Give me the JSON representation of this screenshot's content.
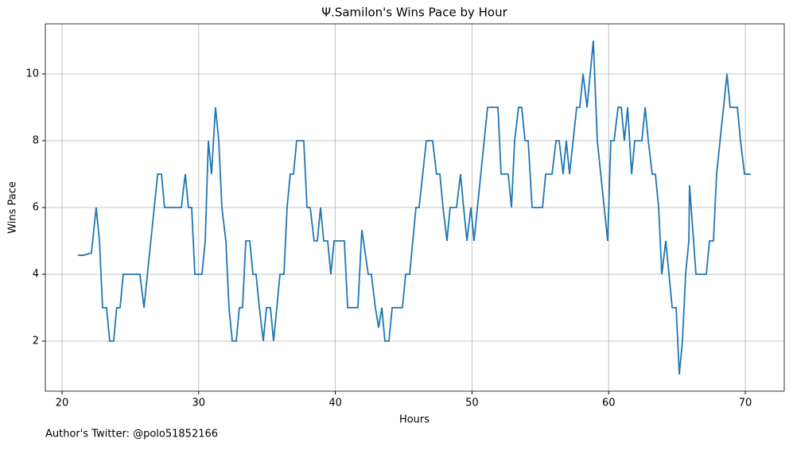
{
  "chart_data": {
    "type": "line",
    "title": "Ψ.Samilon's Wins Pace by Hour",
    "x_label": "Hours",
    "y_label": "Wins Pace",
    "annotation": "Author's Twitter: @polo51852166",
    "grid": true,
    "xlim": [
      18.78,
      72.85
    ],
    "ylim": [
      0.5,
      11.5
    ],
    "xticks": [
      20,
      30,
      40,
      50,
      60,
      70
    ],
    "yticks": [
      2,
      4,
      6,
      8,
      10
    ],
    "x": [
      21.16,
      21.57,
      22.15,
      22.5,
      22.74,
      22.97,
      23.26,
      23.49,
      23.78,
      24.0,
      24.25,
      24.48,
      25.7,
      26.0,
      27.0,
      27.28,
      27.5,
      28.73,
      29.02,
      29.25,
      29.49,
      29.72,
      30.24,
      30.48,
      30.71,
      30.94,
      31.23,
      31.47,
      31.7,
      31.99,
      32.22,
      32.46,
      32.75,
      32.98,
      33.21,
      33.45,
      33.74,
      33.97,
      34.2,
      34.44,
      34.73,
      34.96,
      35.25,
      35.48,
      35.72,
      35.95,
      36.24,
      36.47,
      36.7,
      36.94,
      37.17,
      37.69,
      37.93,
      38.16,
      38.45,
      38.68,
      38.92,
      39.15,
      39.44,
      39.67,
      39.91,
      40.66,
      40.9,
      41.65,
      41.94,
      42.41,
      42.64,
      42.93,
      43.17,
      43.4,
      43.63,
      43.92,
      44.16,
      44.91,
      45.15,
      45.44,
      45.9,
      46.13,
      46.66,
      47.12,
      47.41,
      47.65,
      47.88,
      48.17,
      48.4,
      48.87,
      49.16,
      49.39,
      49.63,
      49.92,
      50.15,
      51.14,
      51.9,
      52.13,
      52.65,
      52.89,
      53.12,
      53.41,
      53.64,
      53.88,
      54.11,
      54.4,
      55.16,
      55.39,
      55.86,
      56.15,
      56.38,
      56.67,
      56.9,
      57.14,
      57.66,
      57.89,
      58.13,
      58.42,
      58.65,
      58.88,
      59.17,
      59.93,
      60.16,
      60.4,
      60.69,
      60.92,
      61.15,
      61.39,
      61.68,
      61.91,
      62.43,
      62.67,
      62.9,
      63.19,
      63.42,
      63.66,
      63.89,
      64.18,
      64.65,
      64.94,
      65.17,
      65.4,
      65.63,
      65.87,
      65.92,
      66.39,
      67.15,
      67.38,
      67.67,
      67.9,
      68.66,
      68.89,
      69.42,
      69.65,
      69.94,
      70.41
    ],
    "series": [
      {
        "name": "Wins Pace",
        "color": "#1f77b4",
        "values": [
          4.57,
          4.57,
          4.64,
          6,
          5,
          3,
          3,
          2,
          2,
          3,
          3,
          4,
          4,
          3,
          7,
          7,
          6,
          6,
          7,
          6,
          6,
          4,
          4,
          5,
          8,
          7,
          9,
          8,
          6,
          5,
          3,
          2,
          2,
          3,
          3,
          5,
          5,
          4,
          4,
          3,
          2,
          3,
          3,
          2,
          3,
          4,
          4,
          6,
          7,
          7,
          8,
          8,
          6,
          6,
          5,
          5,
          6,
          5,
          5,
          4,
          5,
          5,
          3,
          3,
          5.33,
          4,
          4,
          3,
          2.4,
          3,
          2,
          2,
          3,
          3,
          4,
          4,
          6,
          6,
          8,
          8,
          7,
          7,
          6,
          5,
          6,
          6,
          7,
          6,
          5,
          6,
          5,
          9,
          9,
          7,
          7,
          6,
          8,
          9,
          9,
          8,
          8,
          6,
          6,
          7,
          7,
          8,
          8,
          7,
          8,
          7,
          9,
          9,
          10,
          9,
          10,
          11,
          8,
          5,
          8,
          8,
          9,
          9,
          8,
          9,
          7,
          8,
          8,
          9,
          8,
          7,
          7,
          6,
          4,
          5,
          3,
          3,
          1,
          2,
          4,
          5,
          6.67,
          4,
          4,
          5,
          5,
          7,
          10,
          9,
          9,
          8,
          7,
          7
        ]
      }
    ]
  }
}
